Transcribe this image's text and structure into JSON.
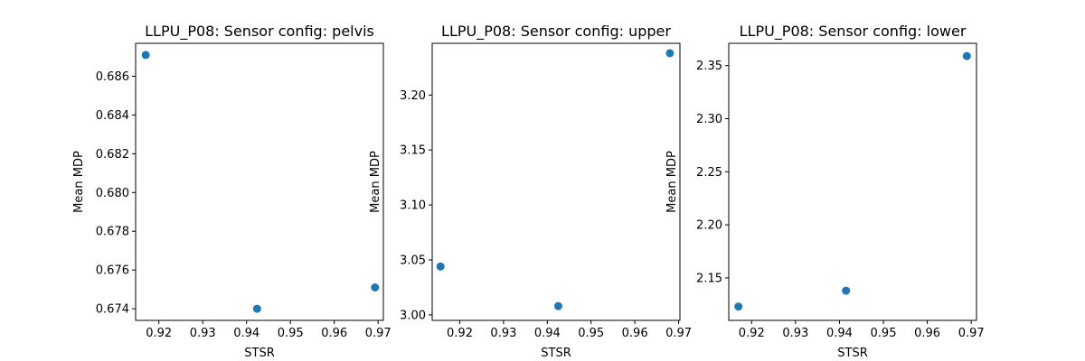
{
  "chart_data": [
    {
      "type": "scatter",
      "title": "LLPU_P08: Sensor config: pelvis",
      "xlabel": "STSR",
      "ylabel": "Mean MDP",
      "xlim": [
        0.9147,
        0.9712
      ],
      "ylim": [
        0.6734,
        0.6877
      ],
      "xticks": [
        "0.92",
        "0.93",
        "0.94",
        "0.95",
        "0.96",
        "0.97"
      ],
      "yticks": [
        "0.674",
        "0.676",
        "0.678",
        "0.680",
        "0.682",
        "0.684",
        "0.686"
      ],
      "points": [
        {
          "x": 0.917,
          "y": 0.6871
        },
        {
          "x": 0.9424,
          "y": 0.674
        },
        {
          "x": 0.9693,
          "y": 0.6751
        }
      ],
      "color": "#1f77b4",
      "grid": false
    },
    {
      "type": "scatter",
      "title": "LLPU_P08: Sensor config: upper",
      "xlabel": "STSR",
      "ylabel": "Mean MDP",
      "xlim": [
        0.9137,
        0.9703
      ],
      "ylim": [
        2.995,
        3.247
      ],
      "xticks": [
        "0.92",
        "0.93",
        "0.94",
        "0.95",
        "0.96",
        "0.97"
      ],
      "yticks": [
        "3.00",
        "3.05",
        "3.10",
        "3.15",
        "3.20"
      ],
      "points": [
        {
          "x": 0.9156,
          "y": 3.044
        },
        {
          "x": 0.9425,
          "y": 3.008
        },
        {
          "x": 0.968,
          "y": 3.238
        }
      ],
      "color": "#1f77b4",
      "grid": false
    },
    {
      "type": "scatter",
      "title": "LLPU_P08: Sensor config: lower",
      "xlabel": "STSR",
      "ylabel": "Mean MDP",
      "xlim": [
        0.9148,
        0.9712
      ],
      "ylim": [
        2.11,
        2.371
      ],
      "xticks": [
        "0.92",
        "0.93",
        "0.94",
        "0.95",
        "0.96",
        "0.97"
      ],
      "yticks": [
        "2.15",
        "2.20",
        "2.25",
        "2.30",
        "2.35"
      ],
      "points": [
        {
          "x": 0.917,
          "y": 2.123
        },
        {
          "x": 0.9415,
          "y": 2.138
        },
        {
          "x": 0.969,
          "y": 2.359
        }
      ],
      "color": "#1f77b4",
      "grid": false
    }
  ]
}
